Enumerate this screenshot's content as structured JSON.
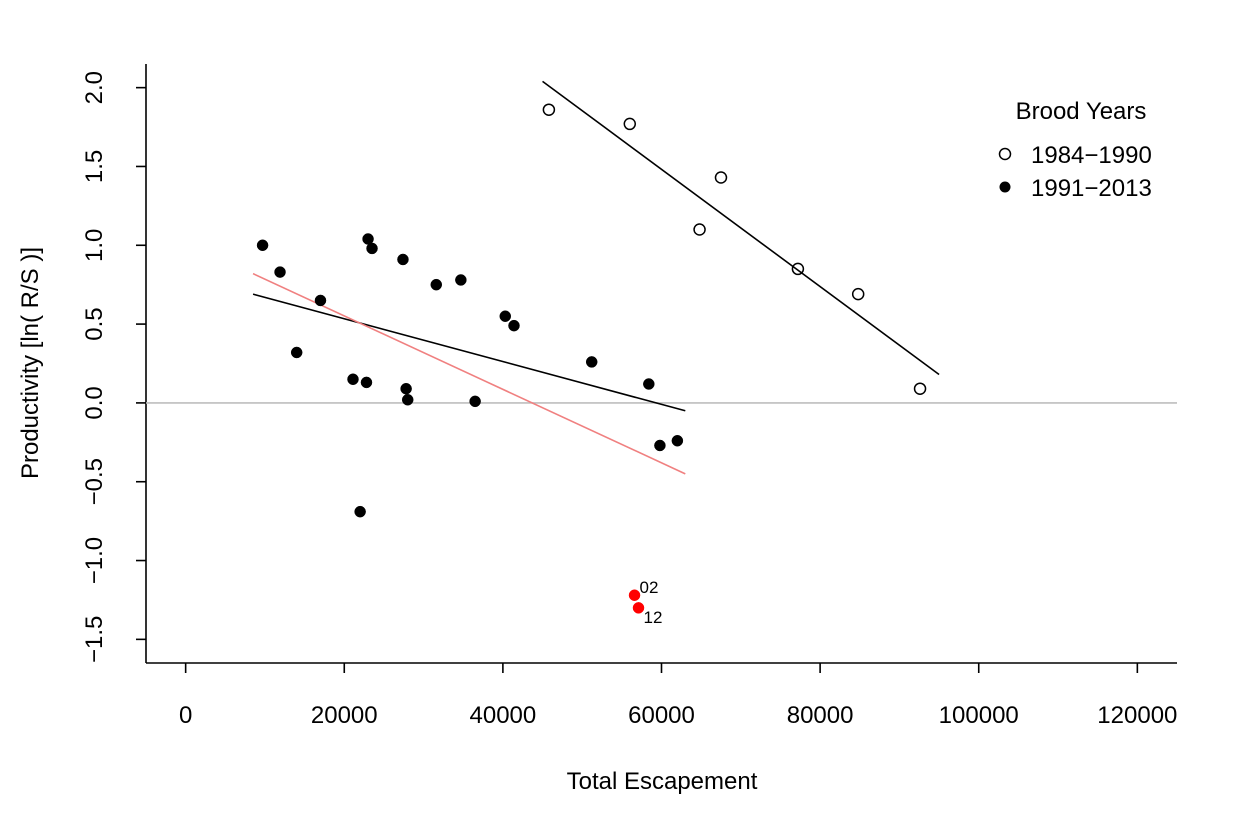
{
  "chart_data": {
    "type": "scatter",
    "xlabel": "Total Escapement",
    "ylabel": "Productivity [ln( R/S )]",
    "xlim": [
      -5000,
      125000
    ],
    "ylim": [
      -1.65,
      2.15
    ],
    "x_ticks": [
      0,
      20000,
      40000,
      60000,
      80000,
      100000,
      120000
    ],
    "x_tick_labels": [
      "0",
      "20000",
      "40000",
      "60000",
      "80000",
      "100000",
      "120000"
    ],
    "y_ticks": [
      -1.5,
      -1.0,
      -0.5,
      0.0,
      0.5,
      1.0,
      1.5,
      2.0
    ],
    "y_tick_labels": [
      "−1.5",
      "−1.0",
      "−0.5",
      "0.0",
      "0.5",
      "1.0",
      "1.5",
      "2.0"
    ],
    "grid": false,
    "reference_line": {
      "y": 0.0,
      "color": "#bebebe"
    },
    "legend": {
      "title": "Brood Years",
      "position": "top-right",
      "entries": [
        {
          "label": "1984−1990",
          "marker": "open-circle"
        },
        {
          "label": "1991−2013",
          "marker": "filled-circle"
        }
      ]
    },
    "series": [
      {
        "name": "1984−1990",
        "marker": "open-circle",
        "color": "#000000",
        "points": [
          {
            "x": 45800,
            "y": 1.86
          },
          {
            "x": 56000,
            "y": 1.77
          },
          {
            "x": 67500,
            "y": 1.43
          },
          {
            "x": 64800,
            "y": 1.1
          },
          {
            "x": 77200,
            "y": 0.85
          },
          {
            "x": 84800,
            "y": 0.69
          },
          {
            "x": 92600,
            "y": 0.09
          }
        ]
      },
      {
        "name": "1991−2013",
        "marker": "filled-circle",
        "color": "#000000",
        "points": [
          {
            "x": 9700,
            "y": 1.0
          },
          {
            "x": 11900,
            "y": 0.83
          },
          {
            "x": 14000,
            "y": 0.32
          },
          {
            "x": 17000,
            "y": 0.65
          },
          {
            "x": 21100,
            "y": 0.15
          },
          {
            "x": 22000,
            "y": -0.69
          },
          {
            "x": 22800,
            "y": 0.13
          },
          {
            "x": 23000,
            "y": 1.04
          },
          {
            "x": 23500,
            "y": 0.98
          },
          {
            "x": 27400,
            "y": 0.91
          },
          {
            "x": 27800,
            "y": 0.09
          },
          {
            "x": 28000,
            "y": 0.02
          },
          {
            "x": 31600,
            "y": 0.75
          },
          {
            "x": 34700,
            "y": 0.78
          },
          {
            "x": 36500,
            "y": 0.01
          },
          {
            "x": 40300,
            "y": 0.55
          },
          {
            "x": 41400,
            "y": 0.49
          },
          {
            "x": 51200,
            "y": 0.26
          },
          {
            "x": 58400,
            "y": 0.12
          },
          {
            "x": 59800,
            "y": -0.27
          },
          {
            "x": 62000,
            "y": -0.24
          }
        ]
      },
      {
        "name": "",
        "marker": "filled-circle",
        "color": "#ff0000",
        "points": [
          {
            "x": 56600,
            "y": -1.22,
            "label": "02"
          },
          {
            "x": 57100,
            "y": -1.3,
            "label": "12"
          }
        ]
      }
    ],
    "fit_lines": [
      {
        "color": "#000000",
        "x": [
          45000,
          95000
        ],
        "y": [
          2.04,
          0.18
        ]
      },
      {
        "color": "#000000",
        "x": [
          8500,
          63000
        ],
        "y": [
          0.69,
          -0.05
        ]
      },
      {
        "color": "#f08080",
        "x": [
          8500,
          63000
        ],
        "y": [
          0.82,
          -0.45
        ]
      }
    ]
  }
}
